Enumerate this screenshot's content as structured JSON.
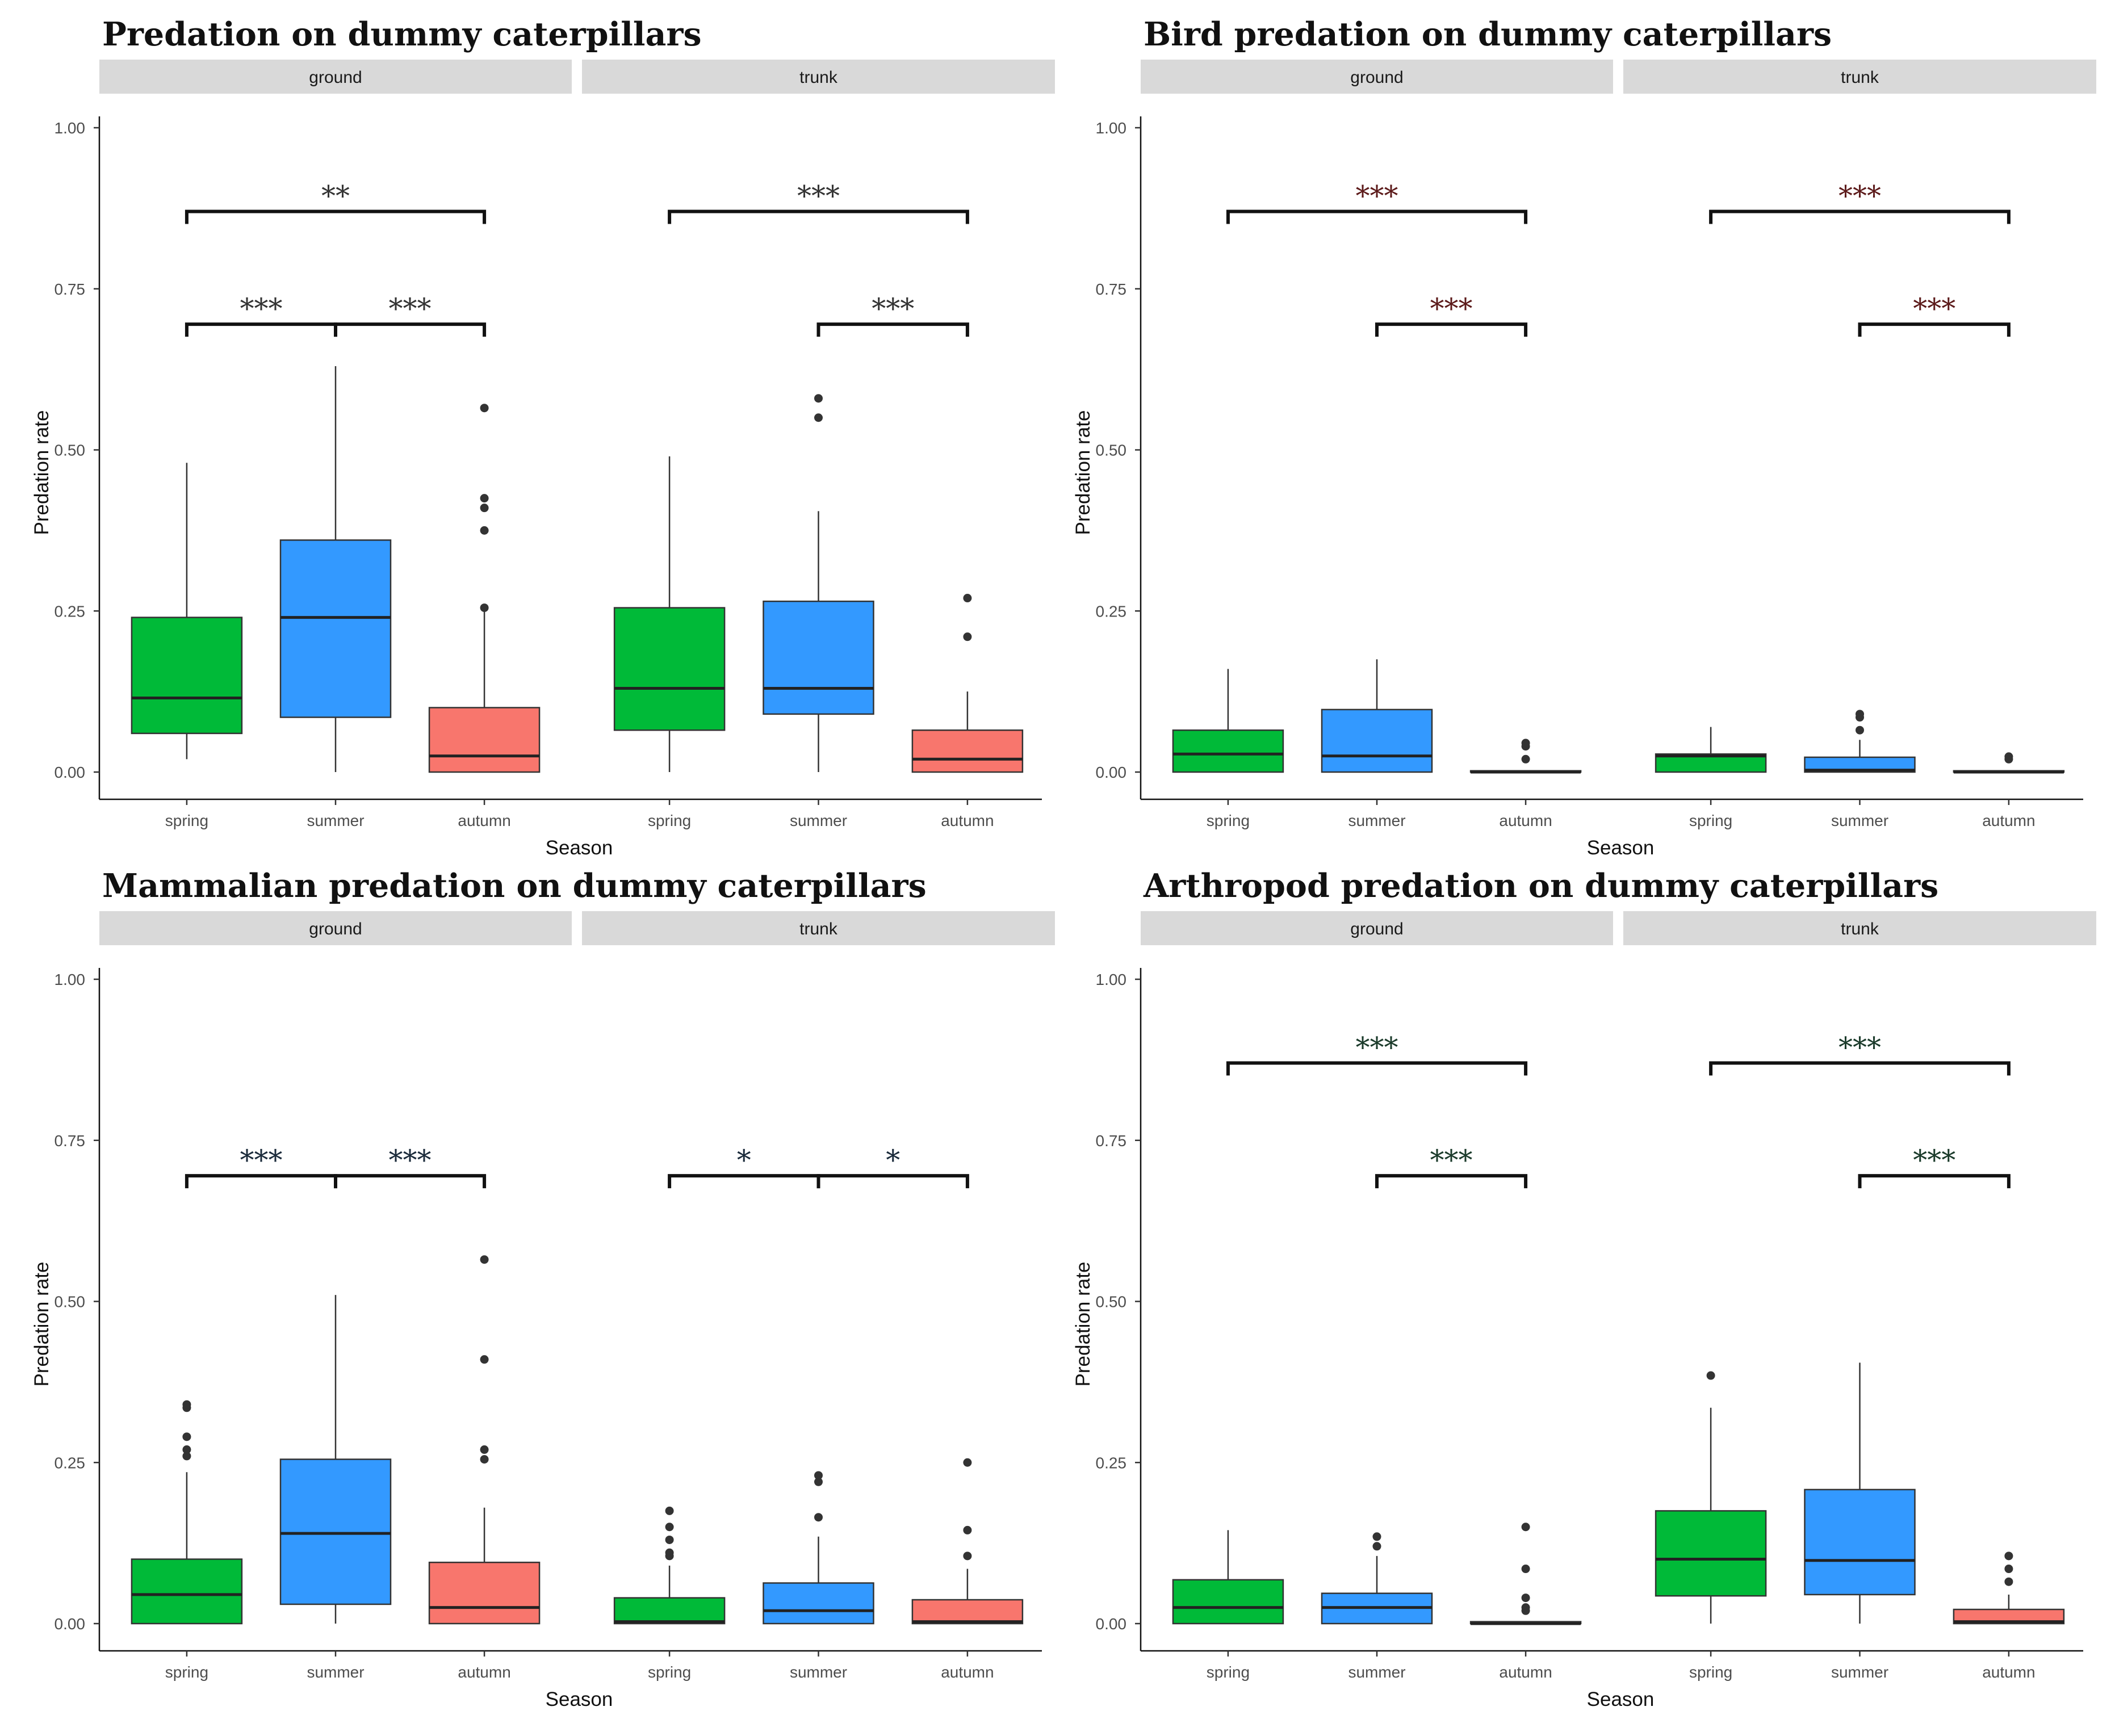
{
  "chart_data": [
    {
      "type": "boxplot",
      "title": "Predation on dummy caterpillars",
      "xlabel": "Season",
      "ylabel": "Predation rate",
      "ylim": [
        0,
        1
      ],
      "yticks": [
        "0.00",
        "0.25",
        "0.50",
        "0.75",
        "1.00"
      ],
      "categories": [
        "spring",
        "summer",
        "autumn"
      ],
      "colors": [
        "#00ba38",
        "#3399ff",
        "#f8766d"
      ],
      "sig_color": "#333333",
      "facets": [
        {
          "label": "ground",
          "boxes": [
            {
              "min": 0.02,
              "q1": 0.06,
              "median": 0.115,
              "q3": 0.24,
              "max": 0.48,
              "outliers": []
            },
            {
              "min": 0.0,
              "q1": 0.085,
              "median": 0.24,
              "q3": 0.36,
              "max": 0.63,
              "outliers": []
            },
            {
              "min": 0.0,
              "q1": 0.0,
              "median": 0.025,
              "q3": 0.1,
              "max": 0.25,
              "outliers": [
                0.255,
                0.375,
                0.41,
                0.425,
                0.565
              ]
            }
          ],
          "brackets": [
            {
              "from": 0,
              "to": 2,
              "y": 0.87,
              "label": "**"
            },
            {
              "from": 0,
              "to": 1,
              "y": 0.695,
              "label": "***"
            },
            {
              "from": 1,
              "to": 2,
              "y": 0.695,
              "label": "***"
            }
          ]
        },
        {
          "label": "trunk",
          "boxes": [
            {
              "min": 0.0,
              "q1": 0.065,
              "median": 0.13,
              "q3": 0.255,
              "max": 0.49,
              "outliers": []
            },
            {
              "min": 0.0,
              "q1": 0.09,
              "median": 0.13,
              "q3": 0.265,
              "max": 0.405,
              "outliers": [
                0.55,
                0.58
              ]
            },
            {
              "min": 0.0,
              "q1": 0.0,
              "median": 0.02,
              "q3": 0.065,
              "max": 0.125,
              "outliers": [
                0.21,
                0.27
              ]
            }
          ],
          "brackets": [
            {
              "from": 0,
              "to": 2,
              "y": 0.87,
              "label": "***"
            },
            {
              "from": 1,
              "to": 2,
              "y": 0.695,
              "label": "***"
            }
          ]
        }
      ]
    },
    {
      "type": "boxplot",
      "title": "Bird predation on dummy caterpillars",
      "xlabel": "Season",
      "ylabel": "Predation rate",
      "ylim": [
        0,
        1
      ],
      "yticks": [
        "0.00",
        "0.25",
        "0.50",
        "0.75",
        "1.00"
      ],
      "categories": [
        "spring",
        "summer",
        "autumn"
      ],
      "colors": [
        "#00ba38",
        "#3399ff",
        "#f8766d"
      ],
      "sig_color": "#5c1a1a",
      "facets": [
        {
          "label": "ground",
          "boxes": [
            {
              "min": 0.0,
              "q1": 0.0,
              "median": 0.028,
              "q3": 0.065,
              "max": 0.16,
              "outliers": []
            },
            {
              "min": 0.0,
              "q1": 0.0,
              "median": 0.025,
              "q3": 0.097,
              "max": 0.175,
              "outliers": []
            },
            {
              "min": 0.0,
              "q1": 0.0,
              "median": 0.0,
              "q3": 0.002,
              "max": 0.002,
              "outliers": [
                0.02,
                0.04,
                0.045
              ]
            }
          ],
          "brackets": [
            {
              "from": 0,
              "to": 2,
              "y": 0.87,
              "label": "***"
            },
            {
              "from": 1,
              "to": 2,
              "y": 0.695,
              "label": "***"
            }
          ]
        },
        {
          "label": "trunk",
          "boxes": [
            {
              "min": 0.0,
              "q1": 0.0,
              "median": 0.025,
              "q3": 0.028,
              "max": 0.07,
              "outliers": []
            },
            {
              "min": 0.0,
              "q1": 0.0,
              "median": 0.003,
              "q3": 0.023,
              "max": 0.05,
              "outliers": [
                0.065,
                0.085,
                0.09
              ]
            },
            {
              "min": 0.0,
              "q1": 0.0,
              "median": 0.0,
              "q3": 0.002,
              "max": 0.002,
              "outliers": [
                0.02,
                0.024
              ]
            }
          ],
          "brackets": [
            {
              "from": 0,
              "to": 2,
              "y": 0.87,
              "label": "***"
            },
            {
              "from": 1,
              "to": 2,
              "y": 0.695,
              "label": "***"
            }
          ]
        }
      ]
    },
    {
      "type": "boxplot",
      "title": "Mammalian predation on dummy caterpillars",
      "xlabel": "Season",
      "ylabel": "Predation rate",
      "ylim": [
        0,
        1
      ],
      "yticks": [
        "0.00",
        "0.25",
        "0.50",
        "0.75",
        "1.00"
      ],
      "categories": [
        "spring",
        "summer",
        "autumn"
      ],
      "colors": [
        "#00ba38",
        "#3399ff",
        "#f8766d"
      ],
      "sig_color": "#1a2a3a",
      "facets": [
        {
          "label": "ground",
          "boxes": [
            {
              "min": 0.0,
              "q1": 0.0,
              "median": 0.045,
              "q3": 0.1,
              "max": 0.235,
              "outliers": [
                0.26,
                0.27,
                0.29,
                0.335,
                0.34
              ]
            },
            {
              "min": 0.0,
              "q1": 0.03,
              "median": 0.14,
              "q3": 0.255,
              "max": 0.51,
              "outliers": []
            },
            {
              "min": 0.0,
              "q1": 0.0,
              "median": 0.025,
              "q3": 0.095,
              "max": 0.18,
              "outliers": [
                0.255,
                0.27,
                0.41,
                0.565
              ]
            }
          ],
          "brackets": [
            {
              "from": 0,
              "to": 1,
              "y": 0.695,
              "label": "***"
            },
            {
              "from": 1,
              "to": 2,
              "y": 0.695,
              "label": "***"
            }
          ]
        },
        {
          "label": "trunk",
          "boxes": [
            {
              "min": 0.0,
              "q1": 0.0,
              "median": 0.003,
              "q3": 0.04,
              "max": 0.09,
              "outliers": [
                0.105,
                0.11,
                0.13,
                0.15,
                0.175
              ]
            },
            {
              "min": 0.0,
              "q1": 0.0,
              "median": 0.02,
              "q3": 0.063,
              "max": 0.135,
              "outliers": [
                0.165,
                0.22,
                0.23
              ]
            },
            {
              "min": 0.0,
              "q1": 0.0,
              "median": 0.003,
              "q3": 0.037,
              "max": 0.085,
              "outliers": [
                0.105,
                0.145,
                0.25
              ]
            }
          ],
          "brackets": [
            {
              "from": 0,
              "to": 1,
              "y": 0.695,
              "label": "*"
            },
            {
              "from": 1,
              "to": 2,
              "y": 0.695,
              "label": "*"
            }
          ]
        }
      ]
    },
    {
      "type": "boxplot",
      "title": "Arthropod predation on dummy caterpillars",
      "xlabel": "Season",
      "ylabel": "Predation rate",
      "ylim": [
        0,
        1
      ],
      "yticks": [
        "0.00",
        "0.25",
        "0.50",
        "0.75",
        "1.00"
      ],
      "categories": [
        "spring",
        "summer",
        "autumn"
      ],
      "colors": [
        "#00ba38",
        "#3399ff",
        "#f8766d"
      ],
      "sig_color": "#1a3a2a",
      "facets": [
        {
          "label": "ground",
          "boxes": [
            {
              "min": 0.0,
              "q1": 0.0,
              "median": 0.025,
              "q3": 0.068,
              "max": 0.145,
              "outliers": []
            },
            {
              "min": 0.0,
              "q1": 0.0,
              "median": 0.025,
              "q3": 0.047,
              "max": 0.105,
              "outliers": [
                0.12,
                0.135
              ]
            },
            {
              "min": 0.0,
              "q1": 0.0,
              "median": 0.0,
              "q3": 0.003,
              "max": 0.003,
              "outliers": [
                0.02,
                0.025,
                0.04,
                0.085,
                0.15
              ]
            }
          ],
          "brackets": [
            {
              "from": 0,
              "to": 2,
              "y": 0.87,
              "label": "***"
            },
            {
              "from": 1,
              "to": 2,
              "y": 0.695,
              "label": "***"
            }
          ]
        },
        {
          "label": "trunk",
          "boxes": [
            {
              "min": 0.0,
              "q1": 0.043,
              "median": 0.1,
              "q3": 0.175,
              "max": 0.335,
              "outliers": [
                0.385
              ]
            },
            {
              "min": 0.0,
              "q1": 0.045,
              "median": 0.098,
              "q3": 0.208,
              "max": 0.405,
              "outliers": []
            },
            {
              "min": 0.0,
              "q1": 0.0,
              "median": 0.003,
              "q3": 0.022,
              "max": 0.045,
              "outliers": [
                0.065,
                0.085,
                0.105
              ]
            }
          ],
          "brackets": [
            {
              "from": 0,
              "to": 2,
              "y": 0.87,
              "label": "***"
            },
            {
              "from": 1,
              "to": 2,
              "y": 0.695,
              "label": "***"
            }
          ]
        }
      ]
    }
  ]
}
